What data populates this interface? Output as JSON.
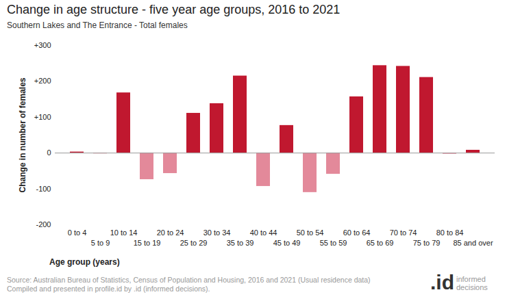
{
  "chart_data": {
    "type": "bar",
    "title": "Change in age structure - five year age groups, 2016 to 2021",
    "subtitle": "Southern Lakes and The Entrance - Total females",
    "x_label": "Age group (years)",
    "y_label": "Change in number of females",
    "categories": [
      "0 to 4",
      "5 to 9",
      "10 to 14",
      "15 to 19",
      "20 to 24",
      "25 to 29",
      "30 to 34",
      "35 to 39",
      "40 to 44",
      "45 to 49",
      "50 to 54",
      "55 to 59",
      "60 to 64",
      "65 to 69",
      "70 to 74",
      "75 to 79",
      "80 to 84",
      "85 and over"
    ],
    "values": [
      3,
      -2,
      168,
      -74,
      -57,
      111,
      138,
      215,
      -93,
      77,
      -110,
      -59,
      157,
      244,
      242,
      211,
      -3,
      8
    ],
    "colors": [
      "#c0182f",
      "#e3899a",
      "#c0182f",
      "#e3899a",
      "#e3899a",
      "#c0182f",
      "#c0182f",
      "#c0182f",
      "#e3899a",
      "#c0182f",
      "#e3899a",
      "#e3899a",
      "#c0182f",
      "#c0182f",
      "#c0182f",
      "#c0182f",
      "#e3899a",
      "#c0182f"
    ],
    "ylim": [
      -200,
      300
    ],
    "yticks": [
      {
        "value": -200,
        "label": "-200"
      },
      {
        "value": -100,
        "label": "-100"
      },
      0,
      {
        "value": 100,
        "label": "+100"
      },
      {
        "value": 200,
        "label": "+200"
      },
      {
        "value": 300,
        "label": "+300"
      }
    ],
    "grid": false,
    "source": [
      "Source: Australian Bureau of Statistics, Census of Population and Housing, 2016 and 2021 (Usual residence data)",
      "Compiled and presented in profile.id by .id (informed decisions)."
    ],
    "logo": [
      ".id",
      "informed decisions"
    ]
  }
}
